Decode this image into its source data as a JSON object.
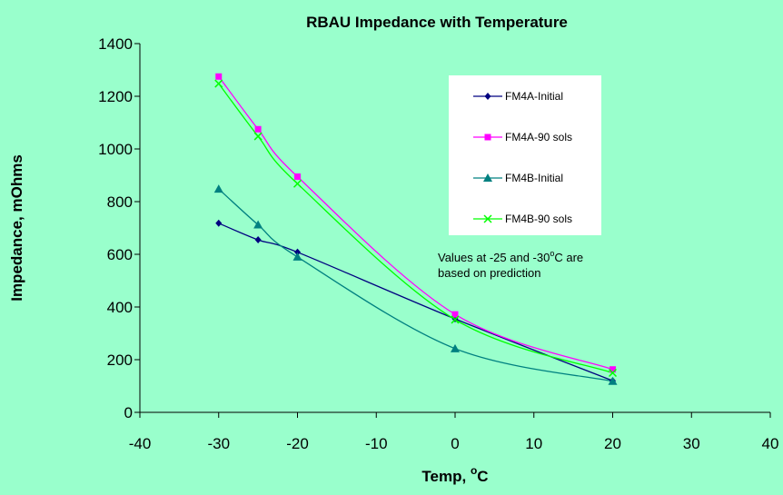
{
  "chart_data": {
    "type": "line",
    "title": "RBAU Impedance with Temperature",
    "xlabel": "Temp, ",
    "xlabel_unit_sup": "o",
    "xlabel_unit": "C",
    "ylabel": "Impedance, mOhms",
    "xlim": [
      -40,
      40
    ],
    "ylim": [
      0,
      1400
    ],
    "xticks": [
      -40,
      -30,
      -20,
      -10,
      0,
      10,
      20,
      30,
      40
    ],
    "yticks": [
      0,
      200,
      400,
      600,
      800,
      1000,
      1200,
      1400
    ],
    "grid": false,
    "legend_position": "top-right",
    "series": [
      {
        "name": "FM4A-Initial",
        "color": "#000080",
        "marker": "diamond",
        "x": [
          -30,
          -25,
          -20,
          0,
          20
        ],
        "y": [
          718,
          655,
          608,
          355,
          120
        ]
      },
      {
        "name": "FM4A-90 sols",
        "color": "#ff00ff",
        "marker": "square",
        "x": [
          -30,
          -25,
          -20,
          0,
          20
        ],
        "y": [
          1275,
          1075,
          895,
          372,
          163
        ]
      },
      {
        "name": "FM4B-Initial",
        "color": "#008080",
        "marker": "triangle",
        "x": [
          -30,
          -25,
          -20,
          0,
          20
        ],
        "y": [
          848,
          712,
          590,
          242,
          118
        ]
      },
      {
        "name": "FM4B-90 sols",
        "color": "#00ff00",
        "marker": "x",
        "x": [
          -30,
          -25,
          -20,
          0,
          20
        ],
        "y": [
          1248,
          1048,
          868,
          352,
          150
        ]
      }
    ],
    "annotation": {
      "line1_a": "Values at -25 and -30",
      "line1_sup": "o",
      "line1_b": "C are",
      "line2": "based on prediction"
    }
  }
}
